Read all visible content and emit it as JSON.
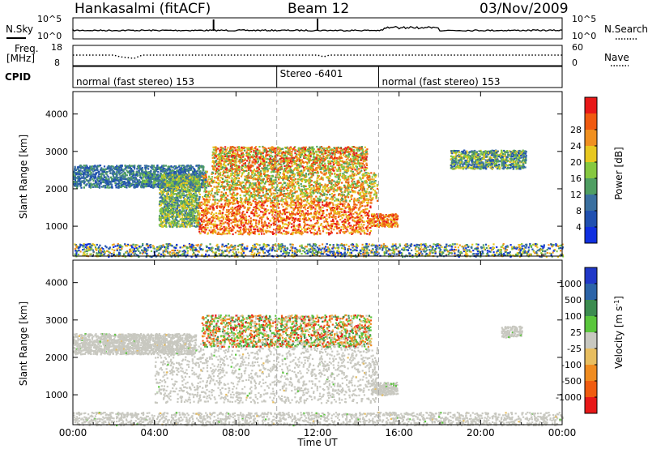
{
  "header": {
    "station": "Hankasalmi (fitACF)",
    "beam": "Beam 12",
    "date": "03/Nov/2009"
  },
  "noise_panel": {
    "left_label": "N.Sky",
    "right_label": "N.Search",
    "left_ticks": [
      "10^5",
      "10^0"
    ],
    "right_ticks": [
      "10^5",
      "10^0"
    ]
  },
  "freq_panel": {
    "left_label": "Freq.",
    "left_unit": "[MHz]",
    "right_label": "Nave",
    "left_ticks": [
      "18",
      "8"
    ],
    "right_ticks": [
      "60",
      "0"
    ]
  },
  "cpid_panel": {
    "label": "CPID",
    "segments": [
      {
        "text": "normal (fast stereo) 153",
        "start": 0
      },
      {
        "text": "Stereo -6401",
        "start": 10
      },
      {
        "text": "normal (fast stereo) 153",
        "start": 15
      }
    ]
  },
  "x_axis": {
    "label": "Time UT",
    "ticks": [
      "00:00",
      "04:00",
      "08:00",
      "12:00",
      "16:00",
      "20:00",
      "00:00"
    ],
    "range_hours": [
      0,
      24
    ]
  },
  "power_panel": {
    "ylabel": "Slant Range [km]",
    "yticks": [
      "1000",
      "2000",
      "3000",
      "4000"
    ],
    "colorbar_label": "Power [dB]",
    "colorbar_ticks": [
      "4",
      "8",
      "12",
      "16",
      "20",
      "24",
      "28"
    ],
    "colors": [
      "#1030e0",
      "#2050b0",
      "#3a70a0",
      "#4f9e62",
      "#86c840",
      "#e8c820",
      "#f09020",
      "#f05a10",
      "#e81818"
    ]
  },
  "velocity_panel": {
    "ylabel": "Slant Range [km]",
    "yticks": [
      "1000",
      "2000",
      "3000",
      "4000"
    ],
    "colorbar_label": "Velocity [m s",
    "colorbar_label_sup": "-1",
    "colorbar_ticks": [
      "1000",
      "500",
      "100",
      "25",
      "-25",
      "-100",
      "-500",
      "-1000"
    ],
    "colors": [
      "#2038c8",
      "#2c64a8",
      "#3c8c50",
      "#5ac63c",
      "#c8c8c0",
      "#e8be60",
      "#f08c20",
      "#f05c10",
      "#e81818"
    ]
  },
  "chart_data": {
    "type": "heatmap",
    "x_range_hours": [
      0,
      24
    ],
    "y_range_km": [
      200,
      4600
    ],
    "power_scatter_regions": [
      {
        "t0": 0.0,
        "t1": 6.5,
        "r0": 2050,
        "r1": 2650,
        "level": [
          1,
          3
        ]
      },
      {
        "t0": 3.3,
        "t1": 4.0,
        "r0": 2150,
        "r1": 2450,
        "level": [
          1,
          4
        ]
      },
      {
        "t0": 4.2,
        "t1": 6.2,
        "r0": 1000,
        "r1": 2400,
        "level": [
          2,
          5
        ]
      },
      {
        "t0": 6.1,
        "t1": 14.6,
        "r0": 800,
        "r1": 1700,
        "level": [
          5,
          8
        ]
      },
      {
        "t0": 6.3,
        "t1": 14.9,
        "r0": 1700,
        "r1": 2500,
        "level": [
          3,
          7
        ]
      },
      {
        "t0": 6.8,
        "t1": 14.4,
        "r0": 2500,
        "r1": 3150,
        "level": [
          3,
          8
        ]
      },
      {
        "t0": 14.6,
        "t1": 15.9,
        "r0": 1000,
        "r1": 1350,
        "level": [
          5,
          8
        ]
      },
      {
        "t0": 18.5,
        "t1": 22.2,
        "r0": 2550,
        "r1": 3050,
        "level": [
          1,
          5
        ]
      },
      {
        "t0": 0.0,
        "t1": 24.0,
        "r0": 200,
        "r1": 550,
        "level": [
          0,
          6
        ]
      }
    ],
    "velocity_scatter_regions": [
      {
        "t0": 0.0,
        "t1": 6.0,
        "r0": 2100,
        "r1": 2650,
        "category": "ground"
      },
      {
        "t0": 4.0,
        "t1": 14.9,
        "r0": 800,
        "r1": 2450,
        "category": "ground"
      },
      {
        "t0": 6.3,
        "t1": 14.6,
        "r0": 2300,
        "r1": 3150,
        "category": "mixed"
      },
      {
        "t0": 14.6,
        "t1": 15.9,
        "r0": 1000,
        "r1": 1350,
        "category": "ground"
      },
      {
        "t0": 21.0,
        "t1": 22.0,
        "r0": 2550,
        "r1": 2850,
        "category": "ground"
      },
      {
        "t0": 0.0,
        "t1": 24.0,
        "r0": 200,
        "r1": 550,
        "category": "ground"
      }
    ]
  }
}
